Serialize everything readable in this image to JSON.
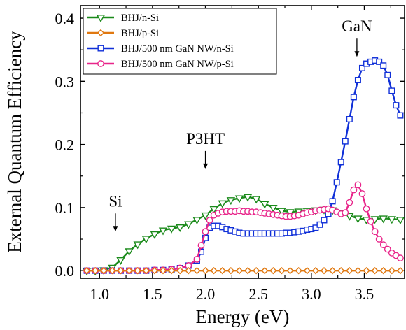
{
  "chart_data": {
    "type": "line",
    "xlabel": "Energy (eV)",
    "ylabel": "External Quantum Efficiency",
    "xlim": [
      0.82,
      3.88
    ],
    "ylim": [
      -0.012,
      0.42
    ],
    "x_ticks": [
      1.0,
      1.5,
      2.0,
      2.5,
      3.0,
      3.5
    ],
    "x_tick_labels": [
      "1.0",
      "1.5",
      "2.0",
      "2.5",
      "3.0",
      "3.5"
    ],
    "y_ticks": [
      0.0,
      0.1,
      0.2,
      0.3,
      0.4
    ],
    "y_tick_labels": [
      "0.0",
      "0.1",
      "0.2",
      "0.3",
      "0.4"
    ],
    "grid": false,
    "legend_position": "top-left",
    "series": [
      {
        "name": "BHJ/n-Si",
        "color": "#1a8a1a",
        "marker": "triangle-down",
        "x": [
          0.88,
          0.96,
          1.04,
          1.12,
          1.2,
          1.28,
          1.36,
          1.44,
          1.52,
          1.6,
          1.68,
          1.76,
          1.84,
          1.92,
          2.0,
          2.08,
          2.16,
          2.24,
          2.32,
          2.4,
          2.48,
          2.56,
          2.64,
          2.72,
          2.8,
          2.88,
          2.96,
          3.04,
          3.12,
          3.2,
          3.28,
          3.36,
          3.44,
          3.52,
          3.6,
          3.68,
          3.76,
          3.84
        ],
        "y": [
          0.0,
          0.0,
          0.001,
          0.005,
          0.017,
          0.031,
          0.042,
          0.051,
          0.058,
          0.064,
          0.067,
          0.069,
          0.074,
          0.081,
          0.088,
          0.098,
          0.107,
          0.112,
          0.115,
          0.117,
          0.114,
          0.106,
          0.1,
          0.095,
          0.093,
          0.094,
          0.095,
          0.096,
          0.097,
          0.096,
          0.092,
          0.087,
          0.083,
          0.081,
          0.082,
          0.083,
          0.082,
          0.081
        ]
      },
      {
        "name": "BHJ/p-Si",
        "color": "#e07810",
        "marker": "diamond",
        "x": [
          0.88,
          0.96,
          1.04,
          1.12,
          1.2,
          1.28,
          1.36,
          1.44,
          1.52,
          1.6,
          1.68,
          1.76,
          1.84,
          1.92,
          2.0,
          2.08,
          2.16,
          2.24,
          2.32,
          2.4,
          2.48,
          2.56,
          2.64,
          2.72,
          2.8,
          2.88,
          2.96,
          3.04,
          3.12,
          3.2,
          3.28,
          3.36,
          3.44,
          3.52,
          3.6,
          3.68,
          3.76,
          3.84
        ],
        "y": [
          0.0,
          0.0,
          0.0,
          0.0,
          0.0,
          0.0,
          0.0,
          0.0,
          0.0,
          0.0,
          0.0,
          0.0,
          0.0,
          0.0,
          0.0,
          0.0,
          0.0,
          0.0,
          0.0,
          0.0,
          0.0,
          0.0,
          0.0,
          0.0,
          0.0,
          0.0,
          0.0,
          0.0,
          0.0,
          0.0,
          0.0,
          0.0,
          0.0,
          0.0,
          0.0,
          0.0,
          0.0,
          0.0
        ]
      },
      {
        "name": "BHJ/500 nm GaN NW/n-Si",
        "color": "#1030d8",
        "marker": "square",
        "x": [
          0.88,
          0.96,
          1.04,
          1.12,
          1.2,
          1.28,
          1.36,
          1.44,
          1.52,
          1.6,
          1.68,
          1.76,
          1.84,
          1.92,
          1.96,
          2.0,
          2.04,
          2.08,
          2.12,
          2.16,
          2.2,
          2.24,
          2.28,
          2.32,
          2.36,
          2.4,
          2.44,
          2.48,
          2.52,
          2.56,
          2.6,
          2.64,
          2.68,
          2.72,
          2.76,
          2.8,
          2.84,
          2.88,
          2.92,
          2.96,
          3.0,
          3.04,
          3.08,
          3.12,
          3.16,
          3.2,
          3.24,
          3.28,
          3.32,
          3.36,
          3.4,
          3.44,
          3.48,
          3.52,
          3.56,
          3.6,
          3.64,
          3.68,
          3.72,
          3.76,
          3.8,
          3.84
        ],
        "y": [
          0.0,
          0.0,
          0.0,
          0.0,
          0.0,
          0.0,
          0.0,
          0.0,
          0.001,
          0.001,
          0.002,
          0.004,
          0.008,
          0.016,
          0.03,
          0.052,
          0.068,
          0.071,
          0.071,
          0.069,
          0.066,
          0.064,
          0.062,
          0.06,
          0.059,
          0.059,
          0.059,
          0.059,
          0.059,
          0.059,
          0.059,
          0.059,
          0.059,
          0.059,
          0.06,
          0.06,
          0.061,
          0.062,
          0.063,
          0.065,
          0.066,
          0.068,
          0.073,
          0.08,
          0.09,
          0.11,
          0.14,
          0.172,
          0.205,
          0.24,
          0.275,
          0.302,
          0.321,
          0.328,
          0.331,
          0.333,
          0.331,
          0.325,
          0.31,
          0.285,
          0.262,
          0.246
        ]
      },
      {
        "name": "BHJ/500 nm GaN NW/p-Si",
        "color": "#e8258a",
        "marker": "circle",
        "x": [
          0.88,
          0.96,
          1.04,
          1.12,
          1.2,
          1.28,
          1.36,
          1.44,
          1.52,
          1.6,
          1.68,
          1.76,
          1.84,
          1.92,
          1.96,
          2.0,
          2.04,
          2.08,
          2.12,
          2.16,
          2.2,
          2.24,
          2.28,
          2.32,
          2.36,
          2.4,
          2.44,
          2.48,
          2.52,
          2.56,
          2.6,
          2.64,
          2.68,
          2.72,
          2.76,
          2.8,
          2.84,
          2.88,
          2.92,
          2.96,
          3.0,
          3.04,
          3.08,
          3.12,
          3.16,
          3.2,
          3.24,
          3.28,
          3.32,
          3.36,
          3.4,
          3.44,
          3.48,
          3.52,
          3.56,
          3.6,
          3.64,
          3.68,
          3.72,
          3.76,
          3.8,
          3.84
        ],
        "y": [
          0.0,
          0.0,
          0.0,
          0.0,
          0.0,
          0.0,
          0.0,
          0.0,
          0.001,
          0.001,
          0.002,
          0.004,
          0.008,
          0.018,
          0.04,
          0.062,
          0.08,
          0.088,
          0.091,
          0.093,
          0.094,
          0.094,
          0.094,
          0.095,
          0.094,
          0.094,
          0.093,
          0.093,
          0.092,
          0.091,
          0.09,
          0.089,
          0.088,
          0.087,
          0.086,
          0.086,
          0.087,
          0.088,
          0.09,
          0.092,
          0.093,
          0.095,
          0.096,
          0.097,
          0.098,
          0.096,
          0.093,
          0.09,
          0.092,
          0.108,
          0.128,
          0.136,
          0.122,
          0.098,
          0.078,
          0.062,
          0.05,
          0.041,
          0.034,
          0.028,
          0.024,
          0.02
        ]
      }
    ],
    "annotations": [
      {
        "text": "Si",
        "x": 1.15,
        "y": 0.073,
        "arrow_to_y": 0.075
      },
      {
        "text": "P3HT",
        "x": 2.0,
        "y": 0.172,
        "arrow_to_y": 0.175
      },
      {
        "text": "GaN",
        "x": 3.43,
        "y": 0.35,
        "arrow_to_y": 0.353
      }
    ]
  }
}
